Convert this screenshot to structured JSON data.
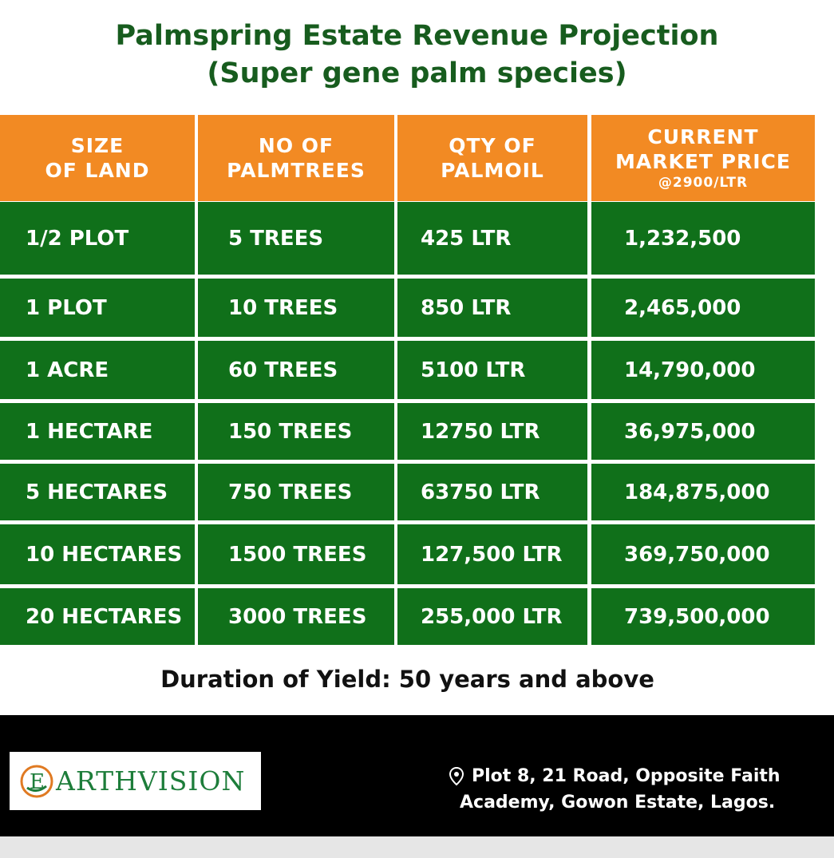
{
  "title": {
    "line1": "Palmspring Estate Revenue Projection",
    "line2": "(Super gene palm species)"
  },
  "table": {
    "headers": [
      {
        "lines": [
          "SIZE",
          "OF LAND"
        ]
      },
      {
        "lines": [
          "NO OF",
          "PALMTREES"
        ]
      },
      {
        "lines": [
          "QTY OF",
          "PALMOIL"
        ]
      },
      {
        "lines": [
          "CURRENT",
          "MARKET PRICE"
        ],
        "sub": "@2900/LTR"
      }
    ],
    "rows": [
      [
        "1/2 PLOT",
        "5 TREES",
        "425 LTR",
        "1,232,500"
      ],
      [
        "1 PLOT",
        "10 TREES",
        "850 LTR",
        "2,465,000"
      ],
      [
        "1 ACRE",
        "60 TREES",
        "5100 LTR",
        "14,790,000"
      ],
      [
        "1 HECTARE",
        "150 TREES",
        "12750 LTR",
        "36,975,000"
      ],
      [
        "5 HECTARES",
        "750 TREES",
        "63750 LTR",
        "184,875,000"
      ],
      [
        "10 HECTARES",
        "1500 TREES",
        "127,500 LTR",
        "369,750,000"
      ],
      [
        "20 HECTARES",
        "3000 TREES",
        "255,000 LTR",
        "739,500,000"
      ]
    ]
  },
  "duration": "Duration of Yield: 50 years and above",
  "footer": {
    "logo_text": "ARTHVISION",
    "logo_icon": "earthvision-e-logo-icon",
    "address_icon": "location-pin-icon",
    "address_line1": "Plot 8, 21 Road, Opposite Faith",
    "address_line2": "Academy, Gowon Estate, Lagos."
  },
  "colors": {
    "title": "#175c1e",
    "header_bg": "#f28a23",
    "row_bg": "#10701a",
    "footer_bg": "#000000"
  }
}
